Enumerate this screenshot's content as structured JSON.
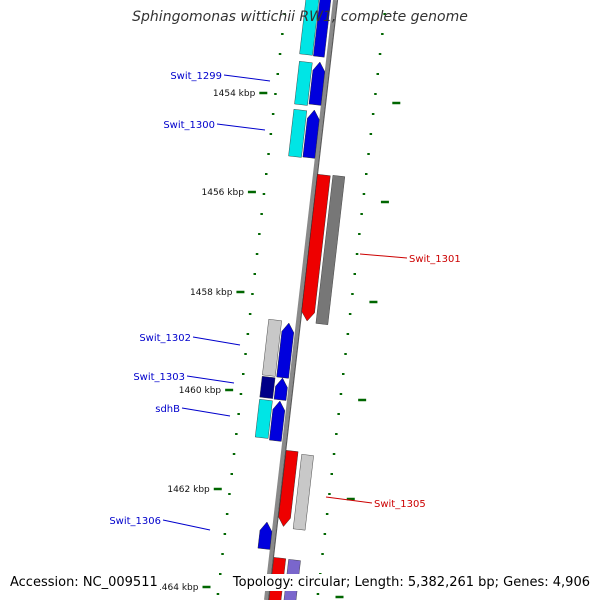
{
  "title": "Sphingomonas wittichii RW1, complete genome",
  "accession_text": "Accession: NC_009511",
  "summary_text": "Topology: circular; Length: 5,382,261 bp; Genes: 4,906",
  "colors": {
    "forward_gene": "#0000dd",
    "reverse_gene": "#ee0000",
    "cyan_track": "#00e5e5",
    "grey_track": "#777777",
    "light_grey_track": "#c8c8c8",
    "navy_track": "#000088",
    "tick_green": "#006600",
    "backbone": "#8a8a8a",
    "forward_label": "#0000cc",
    "reverse_label": "#cc0000"
  },
  "ticks": [
    {
      "label": "1454 kbp"
    },
    {
      "label": "1456 kbp"
    },
    {
      "label": "1458 kbp"
    },
    {
      "label": "1460 kbp"
    },
    {
      "label": "1462 kbp"
    },
    {
      "label": "1464 kbp"
    }
  ],
  "genes": [
    {
      "label": "Swit_1299",
      "strand": "forward"
    },
    {
      "label": "Swit_1300",
      "strand": "forward"
    },
    {
      "label": "Swit_1301",
      "strand": "reverse"
    },
    {
      "label": "Swit_1302",
      "strand": "forward"
    },
    {
      "label": "Swit_1303",
      "strand": "forward"
    },
    {
      "label": "sdhB",
      "strand": "forward"
    },
    {
      "label": "Swit_1305",
      "strand": "reverse"
    },
    {
      "label": "Swit_1306",
      "strand": "forward"
    }
  ]
}
